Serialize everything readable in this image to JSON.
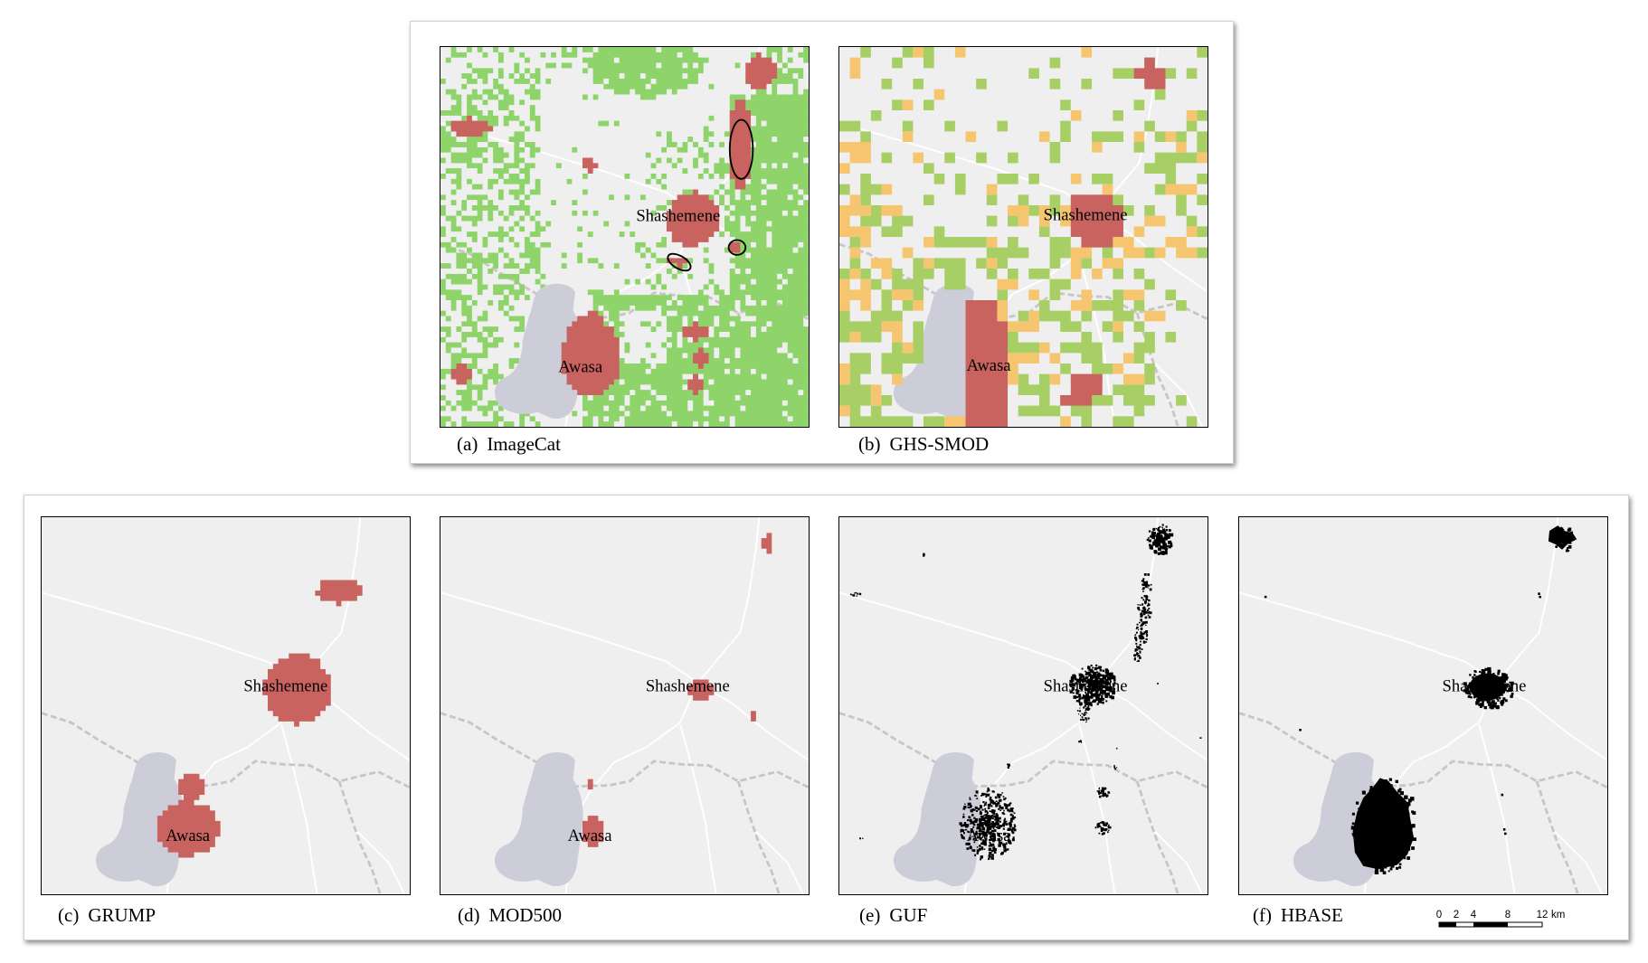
{
  "panels": [
    {
      "label": "(a)",
      "name": "ImageCat"
    },
    {
      "label": "(b)",
      "name": "GHS-SMOD"
    },
    {
      "label": "(c)",
      "name": "GRUMP"
    },
    {
      "label": "(d)",
      "name": "MOD500"
    },
    {
      "label": "(e)",
      "name": "GUF"
    },
    {
      "label": "(f)",
      "name": "HBASE"
    }
  ],
  "cities": {
    "shashemene": "Shashemene",
    "awasa": "Awasa"
  },
  "scale_bar": {
    "ticks": [
      "0",
      "2",
      "4",
      "8",
      "12"
    ],
    "unit": "km"
  },
  "colors": {
    "background": "#efefef",
    "lake": "#cdcdd9",
    "road": "#ffffff",
    "boundary": "#c6c6c6",
    "urban": "#c96360",
    "imagecat_green": "#8ed46b",
    "smod_green": "#a8ce66",
    "smod_orange": "#f5c56f",
    "built_up_black": "#000000"
  }
}
